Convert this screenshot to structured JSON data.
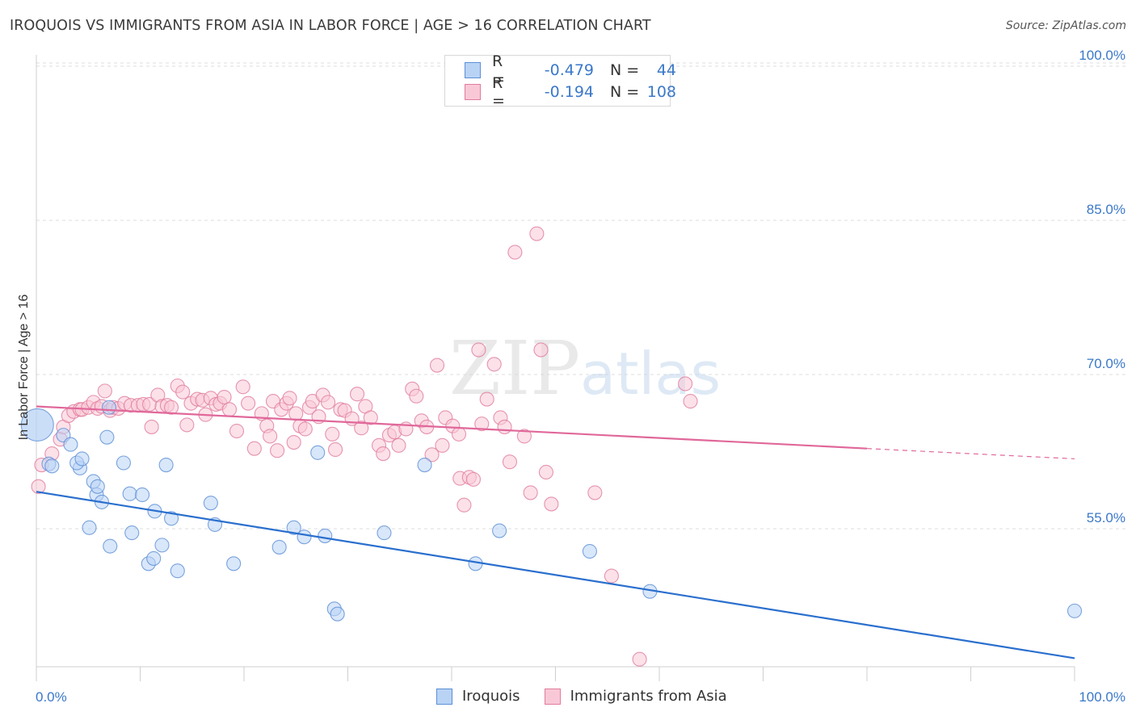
{
  "header": {
    "title": "IROQUOIS VS IMMIGRANTS FROM ASIA IN LABOR FORCE | AGE > 16 CORRELATION CHART",
    "source": "Source: ZipAtlas.com"
  },
  "watermark": {
    "zip": "ZIP",
    "atlas": "atlas"
  },
  "legend": {
    "r_label": "R =",
    "n_label": "N =",
    "rows": [
      {
        "r": "-0.479",
        "n": "44",
        "color": "#b9d3f5",
        "border": "#5b8fd6"
      },
      {
        "r": "-0.194",
        "n": "108",
        "color": "#f9c8d7",
        "border": "#e07c9c"
      }
    ]
  },
  "bottom_legend": {
    "items": [
      "Iroquois",
      "Immigrants from Asia"
    ]
  },
  "chart_data": {
    "type": "scatter",
    "title": "IROQUOIS VS IMMIGRANTS FROM ASIA IN LABOR FORCE | AGE > 16 CORRELATION CHART",
    "ylabel": "In Labor Force | Age > 16",
    "xlabel": "",
    "xlim": [
      0,
      100
    ],
    "ylim": [
      41.5,
      100
    ],
    "x_tick_labels": [
      "0.0%",
      "100.0%"
    ],
    "y_ticks": [
      100,
      85,
      70,
      55
    ],
    "y_tick_labels": [
      "100.0%",
      "85.0%",
      "70.0%",
      "55.0%"
    ],
    "grid": true,
    "legend_position": "top-center",
    "colors": {
      "Iroquois": "#5b8fd6",
      "Immigrants from Asia": "#e07c9c",
      "iroquois_line": "#2a6fce",
      "asia_line": "#e0689a"
    },
    "series": [
      {
        "name": "Iroquois",
        "r": -0.479,
        "n": 44,
        "trend": {
          "x": [
            0,
            100
          ],
          "y": [
            58.6,
            42.4
          ]
        },
        "points": [
          [
            0.1,
            65.1
          ],
          [
            1.2,
            61.3
          ],
          [
            1.5,
            61.1
          ],
          [
            2.6,
            64.1
          ],
          [
            3.3,
            63.2
          ],
          [
            4.2,
            60.9
          ],
          [
            3.9,
            61.4
          ],
          [
            4.4,
            61.8
          ],
          [
            5.1,
            55.1
          ],
          [
            5.5,
            59.6
          ],
          [
            5.8,
            58.3
          ],
          [
            5.9,
            59.1
          ],
          [
            6.3,
            57.6
          ],
          [
            7.1,
            53.3
          ],
          [
            6.8,
            63.9
          ],
          [
            7.0,
            66.8
          ],
          [
            8.4,
            61.4
          ],
          [
            9.0,
            58.4
          ],
          [
            9.2,
            54.6
          ],
          [
            10.2,
            58.3
          ],
          [
            10.8,
            51.6
          ],
          [
            11.3,
            52.1
          ],
          [
            11.4,
            56.7
          ],
          [
            12.1,
            53.4
          ],
          [
            12.5,
            61.2
          ],
          [
            13.0,
            56.0
          ],
          [
            13.6,
            50.9
          ],
          [
            16.8,
            57.5
          ],
          [
            17.2,
            55.4
          ],
          [
            19.0,
            51.6
          ],
          [
            23.4,
            53.2
          ],
          [
            24.8,
            55.1
          ],
          [
            25.8,
            54.2
          ],
          [
            27.1,
            62.4
          ],
          [
            27.8,
            54.3
          ],
          [
            28.7,
            47.2
          ],
          [
            29.0,
            46.7
          ],
          [
            33.5,
            54.6
          ],
          [
            37.4,
            61.2
          ],
          [
            42.3,
            51.6
          ],
          [
            44.6,
            54.8
          ],
          [
            53.3,
            52.8
          ],
          [
            59.1,
            48.9
          ],
          [
            100.0,
            47.0
          ]
        ]
      },
      {
        "name": "Immigrants from Asia",
        "r": -0.194,
        "n": 108,
        "trend": {
          "x": [
            0,
            80
          ],
          "y": [
            66.9,
            62.8
          ]
        },
        "trend_dashed": {
          "x": [
            80,
            100
          ],
          "y": [
            62.8,
            61.8
          ]
        },
        "points": [
          [
            0.2,
            59.1
          ],
          [
            0.5,
            61.2
          ],
          [
            1.5,
            62.3
          ],
          [
            2.3,
            63.7
          ],
          [
            2.6,
            64.9
          ],
          [
            3.1,
            66.0
          ],
          [
            3.6,
            66.4
          ],
          [
            4.2,
            66.6
          ],
          [
            4.4,
            66.6
          ],
          [
            5.0,
            66.8
          ],
          [
            5.5,
            67.3
          ],
          [
            5.9,
            66.7
          ],
          [
            6.3,
            66.9
          ],
          [
            6.6,
            68.4
          ],
          [
            7.1,
            66.5
          ],
          [
            7.4,
            66.8
          ],
          [
            7.9,
            66.7
          ],
          [
            8.5,
            67.2
          ],
          [
            9.1,
            67.0
          ],
          [
            9.8,
            67.0
          ],
          [
            10.3,
            67.1
          ],
          [
            10.9,
            67.1
          ],
          [
            11.1,
            64.9
          ],
          [
            11.7,
            68.0
          ],
          [
            12.1,
            66.9
          ],
          [
            12.6,
            67.0
          ],
          [
            13.0,
            66.8
          ],
          [
            13.6,
            68.9
          ],
          [
            14.1,
            68.3
          ],
          [
            14.5,
            65.1
          ],
          [
            14.9,
            67.2
          ],
          [
            15.5,
            67.6
          ],
          [
            16.0,
            67.5
          ],
          [
            16.3,
            66.1
          ],
          [
            16.8,
            67.7
          ],
          [
            17.3,
            67.1
          ],
          [
            17.7,
            67.2
          ],
          [
            18.1,
            67.8
          ],
          [
            18.6,
            66.6
          ],
          [
            19.3,
            64.5
          ],
          [
            19.9,
            68.8
          ],
          [
            20.4,
            67.2
          ],
          [
            21.0,
            62.8
          ],
          [
            21.7,
            66.2
          ],
          [
            22.2,
            65.0
          ],
          [
            22.5,
            64.0
          ],
          [
            22.8,
            67.4
          ],
          [
            23.2,
            62.6
          ],
          [
            23.6,
            66.6
          ],
          [
            24.1,
            67.2
          ],
          [
            24.4,
            67.7
          ],
          [
            24.8,
            63.4
          ],
          [
            25.0,
            66.2
          ],
          [
            25.4,
            65.0
          ],
          [
            25.9,
            64.7
          ],
          [
            26.3,
            66.8
          ],
          [
            26.6,
            67.4
          ],
          [
            27.2,
            65.9
          ],
          [
            27.6,
            68.0
          ],
          [
            28.1,
            67.3
          ],
          [
            28.5,
            64.2
          ],
          [
            28.8,
            62.7
          ],
          [
            29.3,
            66.6
          ],
          [
            29.7,
            66.5
          ],
          [
            30.4,
            65.7
          ],
          [
            30.9,
            68.1
          ],
          [
            31.3,
            64.8
          ],
          [
            31.7,
            66.9
          ],
          [
            32.2,
            65.8
          ],
          [
            33.0,
            63.1
          ],
          [
            33.4,
            62.3
          ],
          [
            34.0,
            64.1
          ],
          [
            34.5,
            64.4
          ],
          [
            34.9,
            63.1
          ],
          [
            35.6,
            64.7
          ],
          [
            36.2,
            68.6
          ],
          [
            36.6,
            67.9
          ],
          [
            37.1,
            65.5
          ],
          [
            37.6,
            64.9
          ],
          [
            38.1,
            62.2
          ],
          [
            38.6,
            70.9
          ],
          [
            39.1,
            63.1
          ],
          [
            39.4,
            65.8
          ],
          [
            40.1,
            65.0
          ],
          [
            40.7,
            64.2
          ],
          [
            40.8,
            59.9
          ],
          [
            41.2,
            57.3
          ],
          [
            41.7,
            60.0
          ],
          [
            42.1,
            59.8
          ],
          [
            42.6,
            72.4
          ],
          [
            42.9,
            65.2
          ],
          [
            43.4,
            67.6
          ],
          [
            44.1,
            71.0
          ],
          [
            44.7,
            65.8
          ],
          [
            45.1,
            64.9
          ],
          [
            45.6,
            61.5
          ],
          [
            46.1,
            81.9
          ],
          [
            47.0,
            64.0
          ],
          [
            47.6,
            58.5
          ],
          [
            48.2,
            83.7
          ],
          [
            48.6,
            72.4
          ],
          [
            49.1,
            60.5
          ],
          [
            49.6,
            57.4
          ],
          [
            53.8,
            58.5
          ],
          [
            55.4,
            50.4
          ],
          [
            58.1,
            42.3
          ],
          [
            62.5,
            69.1
          ],
          [
            63.0,
            67.4
          ]
        ]
      }
    ]
  }
}
